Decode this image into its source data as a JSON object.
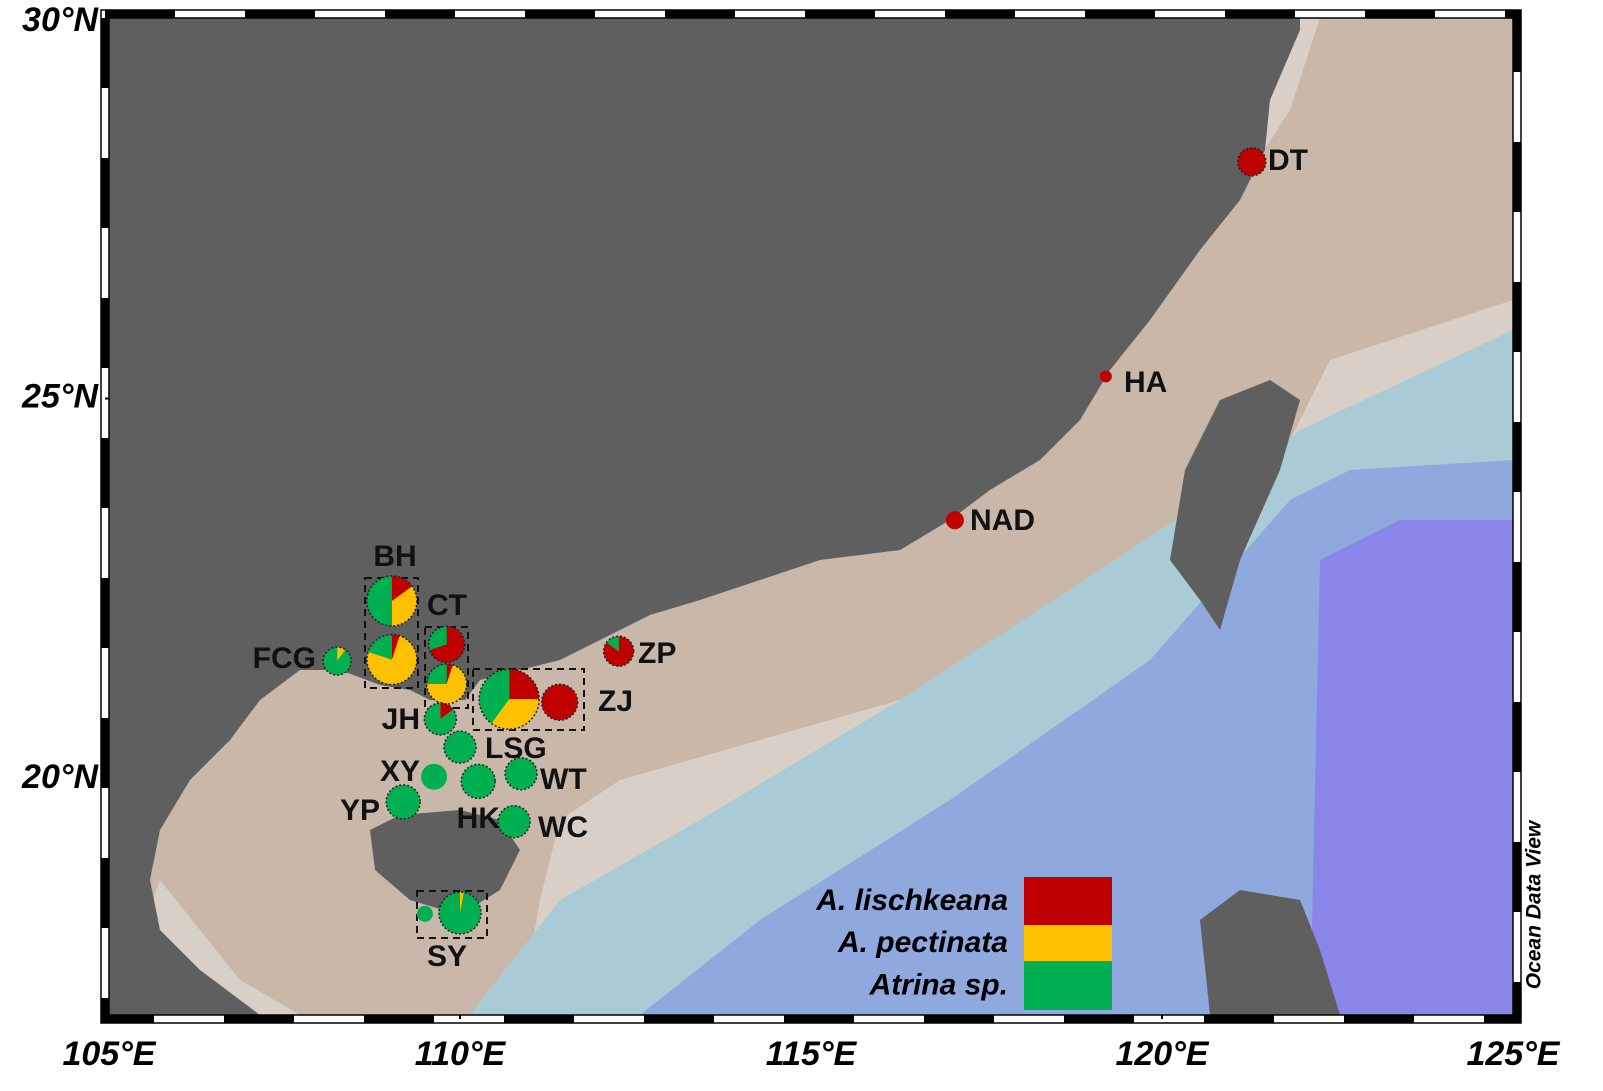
{
  "chart_data": {
    "type": "map",
    "xlim": [
      105,
      125
    ],
    "ylim": [
      16.9,
      30
    ],
    "xticks": [
      {
        "value": 105,
        "label": "105°E"
      },
      {
        "value": 110,
        "label": "110°E"
      },
      {
        "value": 115,
        "label": "115°E"
      },
      {
        "value": 120,
        "label": "120°E"
      },
      {
        "value": 125,
        "label": "125°E"
      }
    ],
    "yticks": [
      {
        "value": 20,
        "label": "20°N"
      },
      {
        "value": 25,
        "label": "25°N"
      },
      {
        "value": 30,
        "label": "30°N"
      }
    ],
    "series": [
      {
        "name": "A. lischkeana",
        "color": "#c00000"
      },
      {
        "name": "A. pectinata",
        "color": "#ffc000"
      },
      {
        "name": "Atrina sp.",
        "color": "#00b050"
      }
    ],
    "sites": [
      {
        "label": "DT",
        "lon": 121.28,
        "lat": 28.11,
        "values": [
          100,
          0,
          0
        ]
      },
      {
        "label": "HA",
        "lon": 119.2,
        "lat": 25.29,
        "values": [
          100,
          0,
          0
        ]
      },
      {
        "label": "NAD",
        "lon": 117.05,
        "lat": 23.4,
        "values": [
          100,
          0,
          0
        ]
      },
      {
        "label": "ZP",
        "lon": 112.26,
        "lat": 21.68,
        "values": [
          85,
          0,
          15
        ]
      },
      {
        "label": "ZJ",
        "lon": 111.42,
        "lat": 21.01,
        "values": [
          100,
          0,
          0
        ]
      },
      {
        "label": null,
        "lon": 110.7,
        "lat": 21.05,
        "values": [
          25,
          35,
          40
        ]
      },
      {
        "label": "BH",
        "lon": 109.03,
        "lat": 22.34,
        "values": [
          15,
          35,
          50
        ]
      },
      {
        "label": null,
        "lon": 109.03,
        "lat": 21.57,
        "values": [
          5,
          75,
          20
        ]
      },
      {
        "label": "CT",
        "lon": 109.81,
        "lat": 21.77,
        "values": [
          70,
          0,
          30
        ]
      },
      {
        "label": null,
        "lon": 109.81,
        "lat": 21.25,
        "values": [
          5,
          70,
          25
        ]
      },
      {
        "label": "JH",
        "lon": 109.72,
        "lat": 20.79,
        "values": [
          15,
          0,
          85
        ]
      },
      {
        "label": "FCG",
        "lon": 108.25,
        "lat": 21.55,
        "values": [
          0,
          10,
          90
        ]
      },
      {
        "label": "LSG",
        "lon": 110.0,
        "lat": 20.42,
        "values": [
          0,
          0,
          100
        ]
      },
      {
        "label": "XY",
        "lon": 109.63,
        "lat": 20.03,
        "values": [
          0,
          0,
          100
        ]
      },
      {
        "label": "HK",
        "lon": 110.26,
        "lat": 19.97,
        "values": [
          0,
          0,
          100
        ]
      },
      {
        "label": "WT",
        "lon": 110.87,
        "lat": 20.07,
        "values": [
          0,
          0,
          100
        ]
      },
      {
        "label": "YP",
        "lon": 109.19,
        "lat": 19.7,
        "values": [
          0,
          0,
          100
        ]
      },
      {
        "label": "WC",
        "lon": 110.77,
        "lat": 19.44,
        "values": [
          0,
          0,
          100
        ]
      },
      {
        "label": null,
        "lon": 109.5,
        "lat": 18.23,
        "values": [
          0,
          0,
          100
        ]
      },
      {
        "label": "SY",
        "lon": 110.0,
        "lat": 18.24,
        "values": [
          0,
          3,
          97
        ]
      }
    ],
    "watermark": "Ocean Data View"
  }
}
